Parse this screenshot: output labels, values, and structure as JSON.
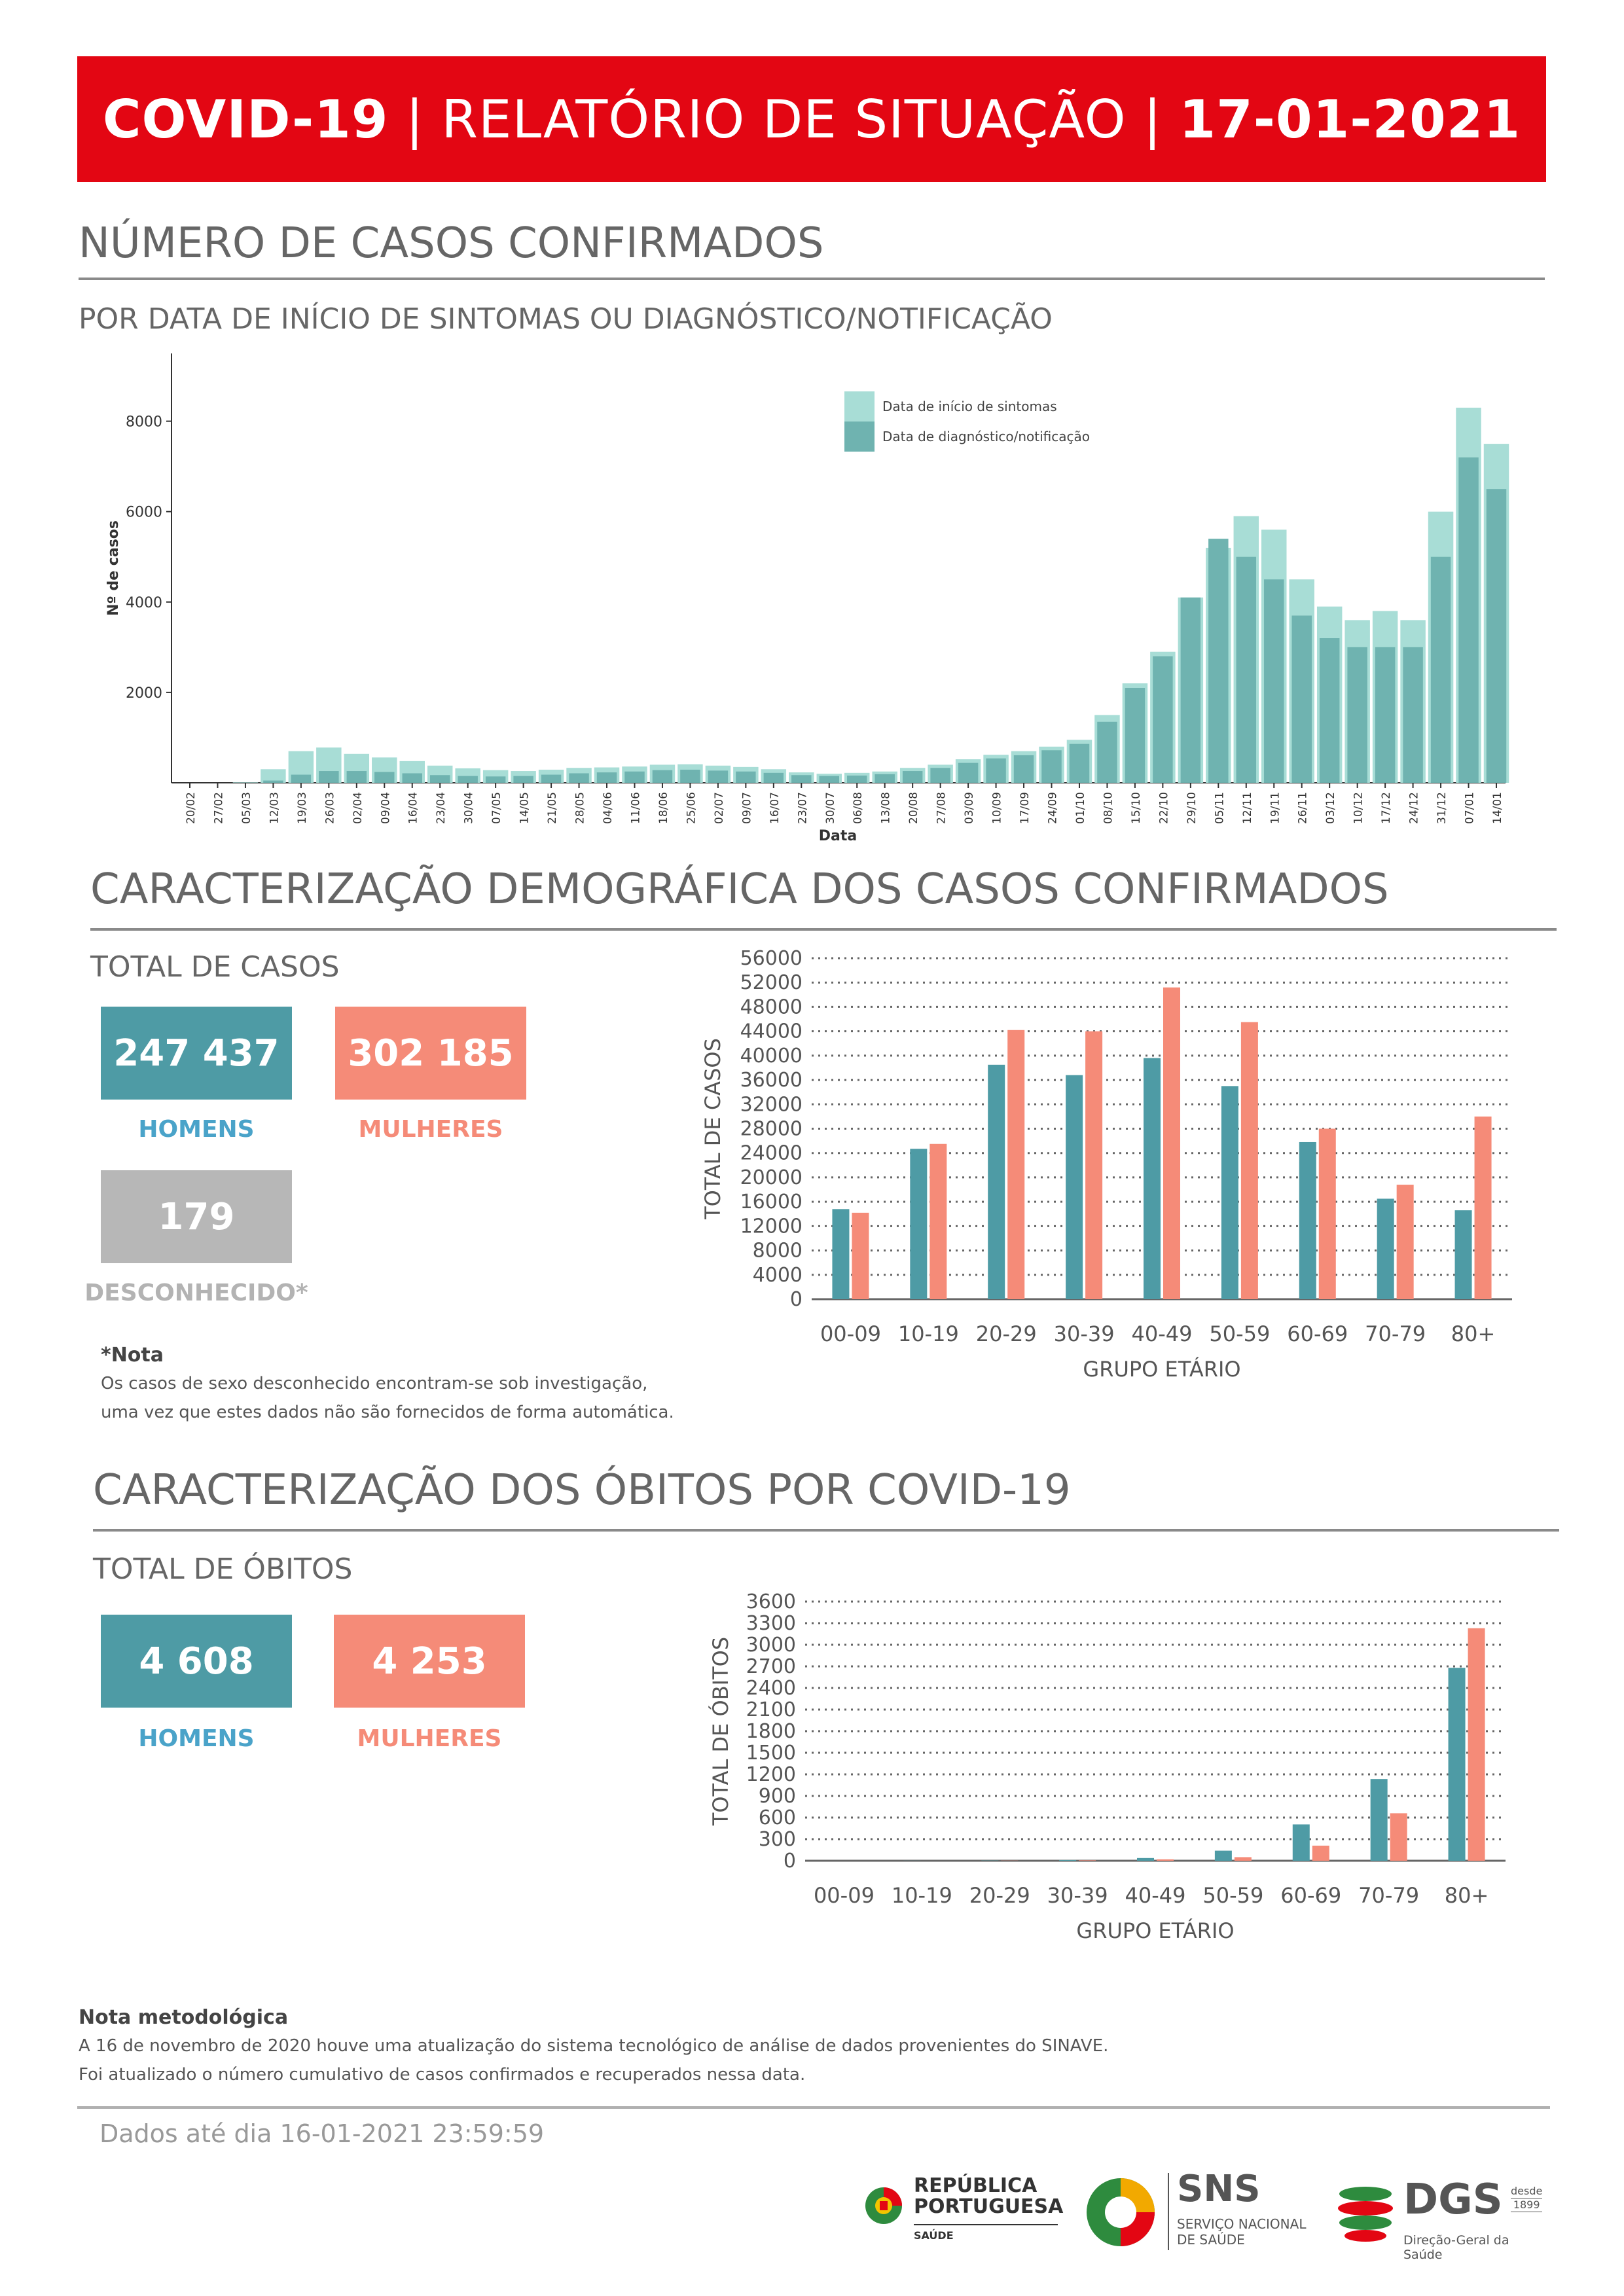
{
  "header": {
    "bold_left": "COVID-19",
    "sep1": " | ",
    "middle": "RELATÓRIO DE SITUAÇÃO",
    "sep2": " | ",
    "date": "17-01-2021",
    "colors": {
      "banner": "#e30613"
    }
  },
  "cases_section": {
    "title": "NÚMERO DE CASOS CONFIRMADOS",
    "subtitle": "POR DATA DE INÍCIO DE SINTOMAS OU DIAGNÓSTICO/NOTIFICAÇÃO"
  },
  "demo_section": {
    "title": "CARACTERIZAÇÃO DEMOGRÁFICA DOS CASOS CONFIRMADOS",
    "total_label": "TOTAL DE CASOS",
    "men_value": "247 437",
    "men_label": "HOMENS",
    "women_value": "302 185",
    "women_label": "MULHERES",
    "unknown_value": "179",
    "unknown_label": "DESCONHECIDO*",
    "note_heading": "*Nota",
    "note_line1": "Os casos de sexo desconhecido encontram-se sob investigação,",
    "note_line2": "uma vez que estes dados não são fornecidos de forma automática."
  },
  "deaths_section": {
    "title": "CARACTERIZAÇÃO DOS ÓBITOS POR COVID-19",
    "total_label": "TOTAL DE ÓBITOS",
    "men_value": "4 608",
    "men_label": "HOMENS",
    "women_value": "4 253",
    "women_label": "MULHERES"
  },
  "methodology": {
    "heading": "Nota metodológica",
    "line1": "A 16 de novembro de 2020 houve uma atualização do sistema tecnológico de análise de dados provenientes do SINAVE.",
    "line2": "Foi atualizado o número cumulativo de casos confirmados e recuperados nessa data."
  },
  "footer": {
    "data_until": "Dados até dia 16-01-2021 23:59:59",
    "logo_rp_line1": "REPÚBLICA",
    "logo_rp_line2": "PORTUGUESA",
    "logo_rp_line3": "SAÚDE",
    "logo_sns_big": "SNS",
    "logo_sns_line1": "SERVIÇO NACIONAL",
    "logo_sns_line2": "DE SAÚDE",
    "logo_dgs_big": "DGS",
    "logo_dgs_since1": "desde",
    "logo_dgs_since2": "1899",
    "logo_dgs_sub": "Direção-Geral da Saúde"
  },
  "chart_data": [
    {
      "type": "bar",
      "id": "epi-curve",
      "xlabel": "Data",
      "ylabel": "Nº de casos",
      "ylim": [
        0,
        9500
      ],
      "yticks": [
        2000,
        4000,
        6000,
        8000
      ],
      "legend": [
        "Data de início de sintomas",
        "Data de diagnóstico/notificação"
      ],
      "legend_position": "top-center",
      "colors": {
        "onset": "#a8ddd6",
        "notification": "#6fb3b0"
      },
      "xtick_labels": [
        "20/02",
        "27/02",
        "05/03",
        "12/03",
        "19/03",
        "26/03",
        "02/04",
        "09/04",
        "16/04",
        "23/04",
        "30/04",
        "07/05",
        "14/05",
        "21/05",
        "28/05",
        "04/06",
        "11/06",
        "18/06",
        "25/06",
        "02/07",
        "09/07",
        "16/07",
        "23/07",
        "30/07",
        "06/08",
        "13/08",
        "20/08",
        "27/08",
        "03/09",
        "10/09",
        "17/09",
        "24/09",
        "01/10",
        "08/10",
        "15/10",
        "22/10",
        "29/10",
        "05/11",
        "12/11",
        "19/11",
        "26/11",
        "03/12",
        "10/12",
        "17/12",
        "24/12",
        "31/12",
        "07/01",
        "14/01"
      ],
      "weekly_onset": [
        0,
        0,
        10,
        300,
        700,
        780,
        640,
        560,
        480,
        380,
        320,
        280,
        260,
        290,
        330,
        340,
        360,
        400,
        410,
        380,
        350,
        300,
        230,
        200,
        220,
        250,
        330,
        400,
        520,
        620,
        700,
        800,
        950,
        1500,
        2200,
        2900,
        4100,
        5200,
        5900,
        5600,
        4500,
        3900,
        3600,
        3800,
        3600,
        6000,
        8300,
        7500
      ],
      "weekly_notification": [
        0,
        0,
        0,
        50,
        180,
        260,
        260,
        240,
        210,
        170,
        150,
        140,
        150,
        180,
        210,
        230,
        250,
        280,
        290,
        270,
        250,
        220,
        170,
        150,
        160,
        190,
        260,
        330,
        440,
        540,
        610,
        720,
        860,
        1350,
        2100,
        2800,
        4100,
        5400,
        5000,
        4500,
        3700,
        3200,
        3000,
        3000,
        3000,
        5000,
        7200,
        6500
      ]
    },
    {
      "type": "bar",
      "id": "cases-by-age",
      "categories": [
        "00-09",
        "10-19",
        "20-29",
        "30-39",
        "40-49",
        "50-59",
        "60-69",
        "70-79",
        "80+"
      ],
      "series": [
        {
          "name": "HOMENS",
          "color": "#4e9ba5",
          "values": [
            14800,
            24700,
            38500,
            36800,
            39600,
            35000,
            25800,
            16500,
            14600
          ]
        },
        {
          "name": "MULHERES",
          "color": "#f58b78",
          "values": [
            14200,
            25500,
            44200,
            44000,
            51200,
            45500,
            28000,
            18800,
            30000
          ]
        }
      ],
      "xlabel": "GRUPO ETÁRIO",
      "ylabel": "TOTAL DE CASOS",
      "ylim": [
        0,
        56000
      ],
      "yticks": [
        0,
        4000,
        8000,
        12000,
        16000,
        20000,
        24000,
        28000,
        32000,
        36000,
        40000,
        44000,
        48000,
        52000,
        56000
      ]
    },
    {
      "type": "bar",
      "id": "deaths-by-age",
      "categories": [
        "00-09",
        "10-19",
        "20-29",
        "30-39",
        "40-49",
        "50-59",
        "60-69",
        "70-79",
        "80+"
      ],
      "series": [
        {
          "name": "HOMENS",
          "color": "#4e9ba5",
          "values": [
            0,
            1,
            3,
            10,
            38,
            140,
            505,
            1135,
            2680
          ]
        },
        {
          "name": "MULHERES",
          "color": "#f58b78",
          "values": [
            0,
            0,
            2,
            6,
            20,
            50,
            210,
            660,
            3230
          ]
        }
      ],
      "xlabel": "GRUPO ETÁRIO",
      "ylabel": "TOTAL DE ÓBITOS",
      "ylim": [
        0,
        3600
      ],
      "yticks": [
        0,
        300,
        600,
        900,
        1200,
        1500,
        1800,
        2100,
        2400,
        2700,
        3000,
        3300,
        3600
      ]
    }
  ]
}
